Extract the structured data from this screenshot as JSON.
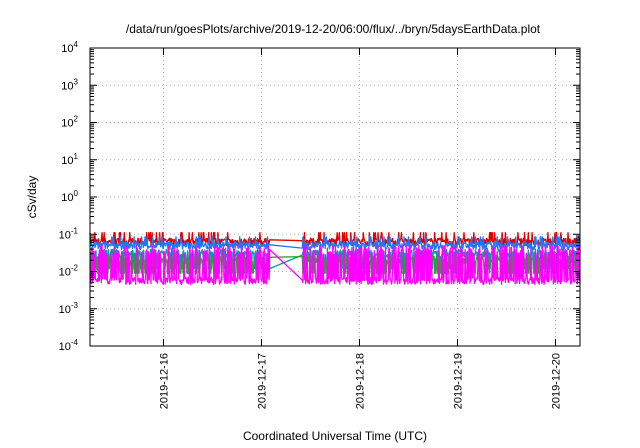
{
  "chart_data": {
    "type": "line",
    "title": "/data/run/goesPlots/archive/2019-12-20/06:00/flux/../bryn/5daysEarthData.plot",
    "xlabel": "Coordinated Universal Time (UTC)",
    "ylabel": "cSv/day",
    "yscale": "log",
    "xlim": [
      "2019-12-15 06:00",
      "2019-12-20 06:00"
    ],
    "ylim": [
      0.0001,
      10000
    ],
    "grid": true,
    "legend": "none",
    "x_ticks": [
      {
        "value": "2019-12-16",
        "label": "2019-12-16"
      },
      {
        "value": "2019-12-17",
        "label": "2019-12-17"
      },
      {
        "value": "2019-12-18",
        "label": "2019-12-18"
      },
      {
        "value": "2019-12-19",
        "label": "2019-12-19"
      },
      {
        "value": "2019-12-20",
        "label": "2019-12-20"
      }
    ],
    "y_ticks": [
      {
        "value": 0.0001,
        "base": "10",
        "exp": "-4"
      },
      {
        "value": 0.001,
        "base": "10",
        "exp": "-3"
      },
      {
        "value": 0.01,
        "base": "10",
        "exp": "-2"
      },
      {
        "value": 0.1,
        "base": "10",
        "exp": "-1"
      },
      {
        "value": 1,
        "base": "10",
        "exp": "0"
      },
      {
        "value": 10,
        "base": "10",
        "exp": "1"
      },
      {
        "value": 100,
        "base": "10",
        "exp": "2"
      },
      {
        "value": 1000,
        "base": "10",
        "exp": "3"
      },
      {
        "value": 10000,
        "base": "10",
        "exp": "4"
      }
    ],
    "gap": [
      "2019-12-17 02:00",
      "2019-12-17 10:00"
    ],
    "series": [
      {
        "color": "#e00000",
        "base": 0.065,
        "low": 0.04,
        "high": 0.11
      },
      {
        "color": "#1f77ff",
        "base": 0.052,
        "low": 0.03,
        "high": 0.085
      },
      {
        "color": "#00a0a0",
        "base": 0.03,
        "low": 0.012,
        "high": 0.05
      },
      {
        "color": "#2ca02c",
        "base": 0.02,
        "low": 0.009,
        "high": 0.04
      },
      {
        "color": "#ff00ff",
        "base": 0.009,
        "low": 0.005,
        "high": 0.05
      }
    ]
  }
}
